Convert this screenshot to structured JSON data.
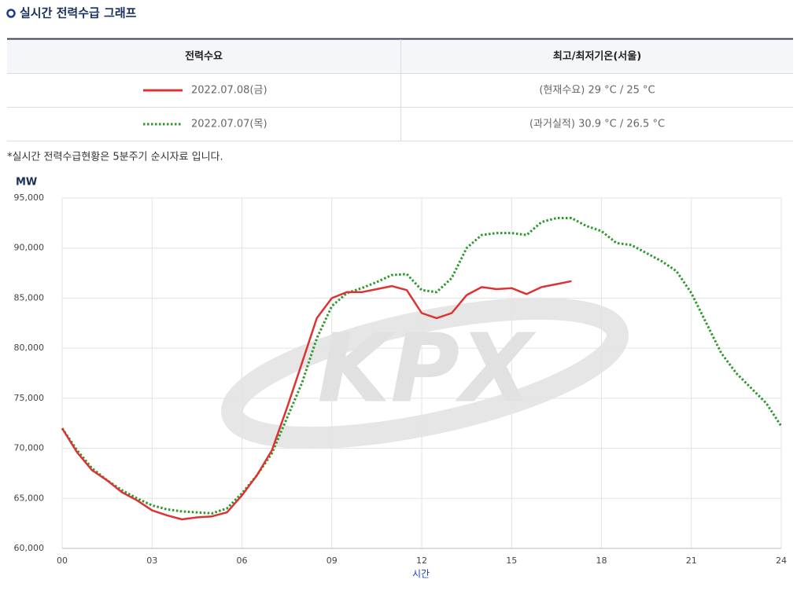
{
  "header": {
    "title": "실시간 전력수급 그래프"
  },
  "table": {
    "headers": [
      "전력수요",
      "최고/최저기온(서울)"
    ],
    "temps": [
      "(현재수요) 29 °C / 25 °C",
      "(과거실적) 30.9 °C / 26.5 °C"
    ]
  },
  "note": "*실시간 전력수급현황은 5분주기 순시자료 입니다.",
  "chart_data": {
    "type": "line",
    "watermark": "KPX",
    "ylabel": "MW",
    "xlabel": "시간",
    "xlim": [
      0,
      24
    ],
    "ylim": [
      60000,
      95000
    ],
    "xticks": [
      {
        "value": 0,
        "label": "00"
      },
      {
        "value": 3,
        "label": "03"
      },
      {
        "value": 6,
        "label": "06"
      },
      {
        "value": 9,
        "label": "09"
      },
      12,
      15,
      18,
      21,
      24
    ],
    "yticks": [
      {
        "value": 60000,
        "label": "60,000"
      },
      {
        "value": 65000,
        "label": "65,000"
      },
      {
        "value": 70000,
        "label": "70,000"
      },
      {
        "value": 75000,
        "label": "75,000"
      },
      {
        "value": 80000,
        "label": "80,000"
      },
      {
        "value": 85000,
        "label": "85,000"
      },
      {
        "value": 90000,
        "label": "90,000"
      },
      {
        "value": 95000,
        "label": "95,000"
      }
    ],
    "grid": true,
    "x": [
      0,
      0.5,
      1,
      1.5,
      2,
      2.5,
      3,
      3.5,
      4,
      4.5,
      5,
      5.5,
      6,
      6.5,
      7,
      7.5,
      8,
      8.5,
      9,
      9.5,
      10,
      10.5,
      11,
      11.5,
      12,
      12.5,
      13,
      13.5,
      14,
      14.5,
      15,
      15.5,
      16,
      16.5,
      17,
      17.5,
      18,
      18.5,
      19,
      19.5,
      20,
      20.5,
      21,
      21.5,
      22,
      22.5,
      23,
      23.5,
      24
    ],
    "series": [
      {
        "name": "2022.07.08(금)",
        "color": "#dd3333",
        "line_style": "solid",
        "values": [
          72000,
          69600,
          67800,
          66800,
          65600,
          64800,
          63800,
          63300,
          62900,
          63100,
          63200,
          63600,
          65300,
          67300,
          69800,
          74000,
          78500,
          83000,
          85000,
          85600,
          85600,
          85900,
          86200,
          85800,
          83500,
          83000,
          83500,
          85300,
          86100,
          85900,
          86000,
          85400,
          86100,
          86400,
          86700,
          null,
          null,
          null,
          null,
          null,
          null,
          null,
          null,
          null,
          null,
          null,
          null,
          null,
          null
        ]
      },
      {
        "name": "2022.07.07(목)",
        "color": "#2a9a2a",
        "line_style": "dotted",
        "values": [
          72000,
          69800,
          68000,
          66800,
          65800,
          65000,
          64300,
          63900,
          63700,
          63600,
          63500,
          64000,
          65500,
          67300,
          69500,
          73000,
          76500,
          81000,
          84200,
          85500,
          86000,
          86600,
          87300,
          87400,
          85800,
          85600,
          87000,
          90000,
          91300,
          91500,
          91500,
          91300,
          92600,
          93000,
          93000,
          92200,
          91700,
          90500,
          90300,
          89500,
          88700,
          87700,
          85500,
          82500,
          79500,
          77500,
          76000,
          74500,
          72200
        ]
      }
    ]
  }
}
